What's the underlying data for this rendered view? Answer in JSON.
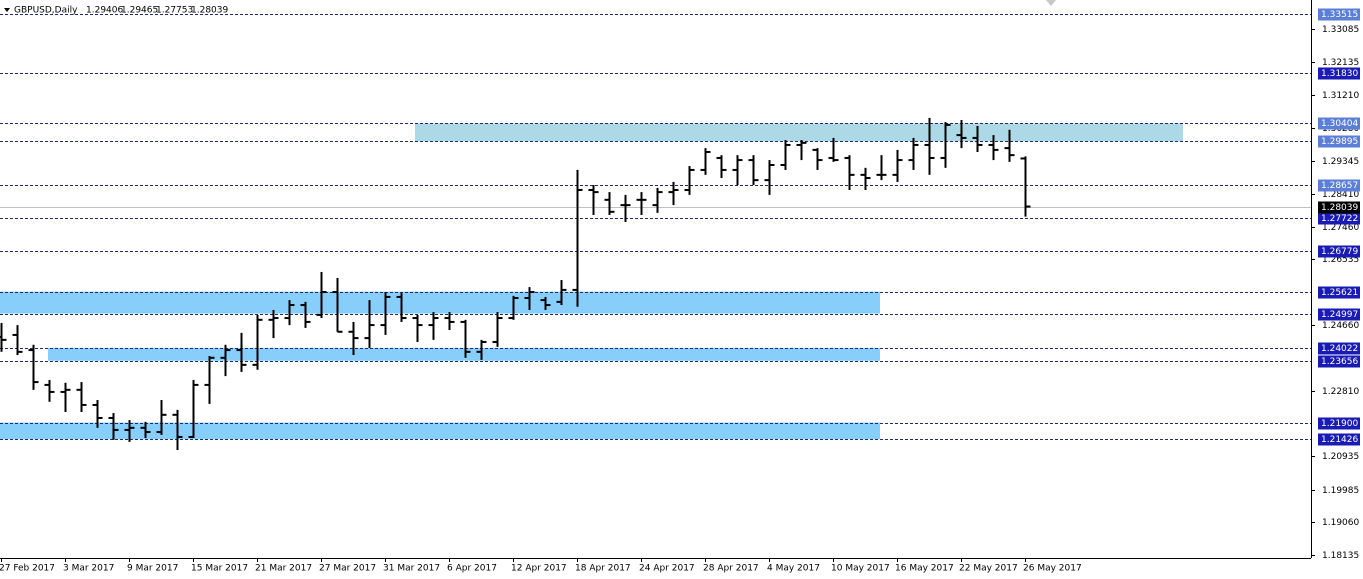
{
  "chart_data": {
    "type": "ohlc",
    "title": "GBPUSD,Daily",
    "color": "#000000",
    "categories": [
      "27 Feb 2017",
      null,
      null,
      null,
      "3 Mar 2017",
      null,
      null,
      null,
      "9 Mar 2017",
      null,
      null,
      null,
      "15 Mar 2017",
      null,
      null,
      null,
      "21 Mar 2017",
      null,
      null,
      null,
      "27 Mar 2017",
      null,
      null,
      null,
      "31 Mar 2017",
      null,
      null,
      null,
      "6 Apr 2017",
      null,
      null,
      null,
      "12 Apr 2017",
      null,
      null,
      null,
      "18 Apr 2017",
      null,
      null,
      null,
      "24 Apr 2017",
      null,
      null,
      null,
      "28 Apr 2017",
      null,
      null,
      null,
      "4 May 2017",
      null,
      null,
      null,
      "10 May 2017",
      null,
      null,
      null,
      "16 May 2017",
      null,
      null,
      null,
      "22 May 2017",
      null,
      null,
      null,
      "26 May 2017"
    ],
    "open": [
      1.2433,
      1.2439,
      1.2396,
      1.2297,
      1.2277,
      1.2283,
      1.224,
      1.2203,
      1.2169,
      1.2175,
      1.2163,
      1.2212,
      1.2149,
      1.2297,
      1.2374,
      1.2396,
      1.2354,
      1.2482,
      1.2487,
      1.2524,
      1.2496,
      1.2561,
      1.2448,
      1.243,
      1.2467,
      1.2547,
      1.2487,
      1.2467,
      1.2487,
      1.2476,
      1.2391,
      1.2419,
      1.2487,
      1.2544,
      1.2538,
      1.2533,
      1.2567,
      1.2851,
      1.2823,
      1.2808,
      1.2823,
      1.2808,
      1.2845,
      1.2851,
      1.2908,
      1.2942,
      1.2908,
      1.2936,
      1.2879,
      1.2922,
      1.2979,
      1.2965,
      1.2942,
      1.2942,
      1.2894,
      1.2894,
      1.2894,
      1.2936,
      1.2979,
      1.2942,
      1.3007,
      1.2999,
      1.2979,
      1.297,
      1.29406
    ],
    "high": [
      1.2473,
      1.2467,
      1.2411,
      1.2311,
      1.2303,
      1.2305,
      1.2254,
      1.2217,
      1.2197,
      1.2192,
      1.2254,
      1.2226,
      1.2311,
      1.2379,
      1.2411,
      1.2445,
      1.2496,
      1.251,
      1.2538,
      1.2533,
      1.2618,
      1.2601,
      1.2476,
      1.2538,
      1.2561,
      1.2558,
      1.2496,
      1.2504,
      1.2504,
      1.2482,
      1.2425,
      1.2504,
      1.255,
      1.2575,
      1.2547,
      1.2595,
      1.2908,
      1.2865,
      1.2845,
      1.2837,
      1.2845,
      1.2857,
      1.2874,
      1.2919,
      1.297,
      1.295,
      1.295,
      1.295,
      1.2936,
      1.2993,
      1.2993,
      1.297,
      1.2999,
      1.295,
      1.2914,
      1.295,
      1.2965,
      1.2999,
      1.3056,
      1.3044,
      1.305,
      1.3033,
      1.3007,
      1.3022,
      1.29465
    ],
    "low": [
      1.2391,
      1.2382,
      1.2283,
      1.2249,
      1.222,
      1.222,
      1.2175,
      1.2141,
      1.2135,
      1.2146,
      1.2155,
      1.2112,
      1.2146,
      1.2243,
      1.2322,
      1.2334,
      1.234,
      1.243,
      1.2467,
      1.2459,
      1.2487,
      1.2448,
      1.2382,
      1.2402,
      1.2439,
      1.2476,
      1.2419,
      1.2425,
      1.2453,
      1.2374,
      1.2368,
      1.2405,
      1.2482,
      1.251,
      1.251,
      1.2524,
      1.2519,
      1.278,
      1.278,
      1.276,
      1.278,
      1.2786,
      1.2808,
      1.2837,
      1.2894,
      1.2885,
      1.2865,
      1.2865,
      1.2837,
      1.2908,
      1.2936,
      1.2908,
      1.2931,
      1.2851,
      1.2851,
      1.2879,
      1.2874,
      1.2908,
      1.2894,
      1.2914,
      1.297,
      1.2959,
      1.2936,
      1.2931,
      1.27753
    ],
    "close": [
      1.2425,
      1.2391,
      1.2305,
      1.2277,
      1.2283,
      1.224,
      1.2203,
      1.2169,
      1.2175,
      1.2163,
      1.2212,
      1.2149,
      1.2297,
      1.2374,
      1.2396,
      1.2354,
      1.2482,
      1.2487,
      1.2524,
      1.2476,
      1.2561,
      1.2448,
      1.243,
      1.2467,
      1.2547,
      1.2487,
      1.2467,
      1.2487,
      1.2476,
      1.2391,
      1.2419,
      1.2487,
      1.2544,
      1.2561,
      1.2524,
      1.2567,
      1.2851,
      1.2845,
      1.2789,
      1.2808,
      1.2823,
      1.2845,
      1.2851,
      1.2908,
      1.2959,
      1.2908,
      1.2936,
      1.2879,
      1.2922,
      1.2979,
      1.2985,
      1.2936,
      1.2936,
      1.2894,
      1.2885,
      1.2894,
      1.2936,
      1.2979,
      1.2942,
      1.3036,
      1.2999,
      1.2979,
      1.2965,
      1.295,
      1.28039
    ],
    "ylim": [
      1.1805,
      1.3391
    ],
    "yticks": [
      1.33085,
      1.32135,
      {
        "value": 1.3121,
        "label": "1.31210"
      },
      {
        "value": 1.3028,
        "label": "1.30280"
      },
      1.29345,
      {
        "value": 1.2841,
        "label": "1.28410"
      },
      {
        "value": 1.2746,
        "label": "1.27460"
      },
      1.26535,
      {
        "value": 1.2466,
        "label": "1.24660"
      },
      {
        "value": 1.2281,
        "label": "1.22810"
      },
      1.20935,
      1.19985,
      {
        "value": 1.1906,
        "label": "1.19060"
      },
      1.18135
    ],
    "levels": [
      {
        "value": 1.33515,
        "color": "#5b7fd6"
      },
      {
        "value": 1.3183,
        "label": "1.31830",
        "color": "#1a1ab4"
      },
      {
        "value": 1.30404,
        "color": "#5b7fd6"
      },
      {
        "value": 1.29895,
        "color": "#5b7fd6"
      },
      {
        "value": 1.28657,
        "color": "#5b7fd6"
      },
      {
        "value": 1.27722,
        "color": "#1a1ab4"
      },
      {
        "value": 1.26779,
        "color": "#1a1ab4"
      },
      {
        "value": 1.25621,
        "color": "#1a1ab4"
      },
      {
        "value": 1.24997,
        "color": "#1a1ab4"
      },
      {
        "value": 1.24022,
        "color": "#1a1ab4"
      },
      {
        "value": 1.23656,
        "color": "#1a1ab4"
      },
      {
        "value": 1.219,
        "label": "1.21900",
        "color": "#1a1ab4"
      },
      {
        "value": 1.21426,
        "color": "#1a1ab4"
      }
    ],
    "zones": [
      {
        "low": 1.29895,
        "high": 1.30404,
        "color": "#add8e6"
      },
      {
        "low": 1.24997,
        "high": 1.25621,
        "color": "#87cefa"
      },
      {
        "low": 1.23656,
        "high": 1.24022,
        "color": "#87cefa"
      },
      {
        "low": 1.21426,
        "high": 1.219,
        "color": "#87cefa"
      }
    ]
  }
}
